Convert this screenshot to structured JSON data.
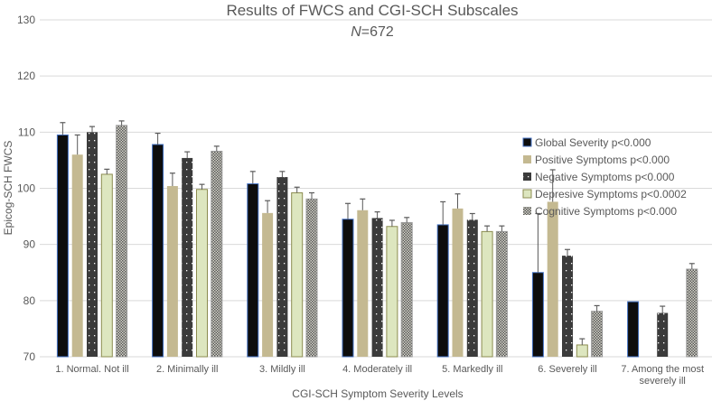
{
  "chart_data": {
    "type": "bar",
    "title": "Results of FWCS and CGI-SCH Subscales",
    "subtitle_italic": "N",
    "subtitle_rest": "=672",
    "xlabel": "CGI-SCH Symptom Severity Levels",
    "ylabel": "Epicog-SCH FWCS",
    "ylim": [
      70,
      130
    ],
    "yticks": [
      70,
      80,
      90,
      100,
      110,
      120,
      130
    ],
    "grid": true,
    "legend_position": "top-right",
    "categories": [
      [
        "1. Normal. Not ill"
      ],
      [
        "2. Minimally ill"
      ],
      [
        "3. Mildly ill"
      ],
      [
        "4. Moderately ill"
      ],
      [
        "5. Markedly ill"
      ],
      [
        "6. Severely ill"
      ],
      [
        "7. Among the most",
        "severely ill"
      ]
    ],
    "series": [
      {
        "name": "Global Severity p<0.000",
        "color": "#0d0d0d",
        "values": [
          109.5,
          107.8,
          100.8,
          94.5,
          93.5,
          85.0,
          79.8
        ],
        "err_upper": [
          111.7,
          109.8,
          103.0,
          97.3,
          97.6,
          95.5,
          null
        ]
      },
      {
        "name": "Positive Symptoms p<0.000",
        "color": "#c4b991",
        "values": [
          106.0,
          100.4,
          95.6,
          96.1,
          96.4,
          97.6,
          null
        ],
        "err_upper": [
          109.5,
          102.7,
          97.8,
          98.1,
          99.0,
          103.3,
          null
        ]
      },
      {
        "name": "Negative Symptoms p<0.000",
        "color": "#3b3b3b",
        "values": [
          110.0,
          105.4,
          102.0,
          94.7,
          94.4,
          88.0,
          77.8
        ],
        "err_upper": [
          111.0,
          106.5,
          103.0,
          95.8,
          95.5,
          89.1,
          79.0
        ]
      },
      {
        "name": "Depresive Symptoms p<0.0002",
        "color": "#dde6bf",
        "values": [
          102.5,
          99.8,
          99.2,
          93.2,
          92.3,
          72.1,
          null
        ],
        "err_upper": [
          103.4,
          100.7,
          100.2,
          94.3,
          93.3,
          73.2,
          null
        ]
      },
      {
        "name": "Cognitive Symptoms p<0.000",
        "color": "#8a8a80",
        "values": [
          111.2,
          106.6,
          98.1,
          93.9,
          92.3,
          78.1,
          85.6
        ],
        "err_upper": [
          112.0,
          107.5,
          99.2,
          94.8,
          93.3,
          79.1,
          86.6
        ]
      }
    ]
  }
}
